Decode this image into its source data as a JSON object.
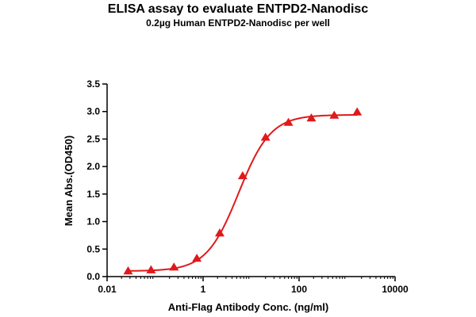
{
  "chart_data": {
    "type": "scatter",
    "title": "ELISA assay to evaluate ENTPD2-Nanodisc",
    "subtitle": "0.2µg Human ENTPD2-Nanodisc per well",
    "xlabel": "Anti-Flag Antibody Conc. (ng/ml)",
    "ylabel": "Mean Abs.(OD450)",
    "xscale": "log",
    "xlim": [
      0.01,
      10000
    ],
    "ylim": [
      0,
      3.5
    ],
    "x_ticks": [
      0.01,
      1,
      100,
      10000
    ],
    "x_tick_labels": [
      "0.01",
      "1",
      "100",
      "10000"
    ],
    "y_ticks": [
      0,
      0.5,
      1,
      1.5,
      2,
      2.5,
      3,
      3.5
    ],
    "y_tick_labels": [
      "0.0",
      "0.5",
      "1.0",
      "1.5",
      "2.0",
      "2.5",
      "3.0",
      "3.5"
    ],
    "grid": false,
    "legend": "none",
    "color": "#e0191b",
    "marker": "triangle",
    "series": [
      {
        "x": [
          0.0274,
          0.0823,
          0.247,
          0.741,
          2.22,
          6.67,
          20.0,
          60.0,
          180,
          540,
          1620
        ],
        "y": [
          0.1,
          0.12,
          0.17,
          0.33,
          0.79,
          1.83,
          2.53,
          2.8,
          2.88,
          2.93,
          2.99
        ]
      }
    ],
    "fit": {
      "model": "4PL",
      "bottom": 0.1,
      "top": 2.94,
      "ec50": 5.5,
      "hill": 1.3
    }
  }
}
